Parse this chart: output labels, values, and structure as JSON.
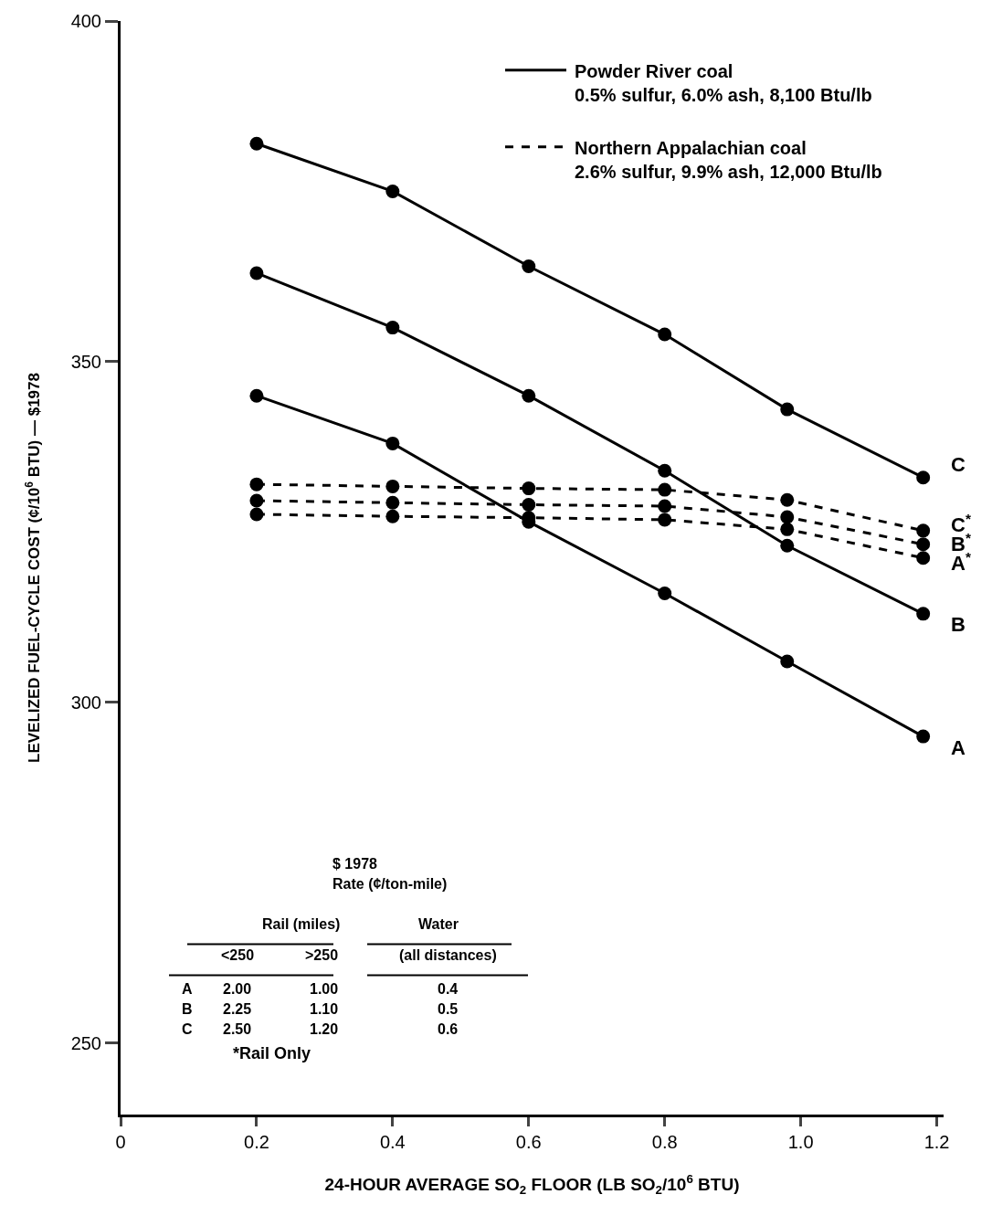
{
  "chart_data": {
    "type": "line",
    "xlabel": "24-HOUR AVERAGE SO$_{2}$ FLOOR (LB SO$_{2}$/10$^{6}$ BTU)",
    "ylabel": "LEVELIZED FUEL-CYCLE COST (¢/10$^{6}$ BTU) — $1978",
    "x": [
      0.2,
      0.4,
      0.6,
      0.8,
      0.98,
      1.18
    ],
    "xlim": [
      0,
      1.21
    ],
    "xticks": [
      {
        "value": 0,
        "label": "0"
      },
      0.2,
      0.4,
      0.6,
      0.8,
      {
        "value": 1.0,
        "label": "1.0"
      },
      1.2
    ],
    "ylim": [
      239.5,
      400
    ],
    "yticks": [
      250,
      300,
      350,
      400
    ],
    "marker": "circle",
    "legend": false,
    "series": [
      {
        "name": "C",
        "color": "#000000",
        "line_style": "solid",
        "values": [
          382,
          375,
          364,
          354,
          343,
          333
        ]
      },
      {
        "name": "B",
        "color": "#000000",
        "line_style": "solid",
        "values": [
          363,
          355,
          345,
          334,
          323,
          313
        ]
      },
      {
        "name": "A",
        "color": "#000000",
        "line_style": "solid",
        "values": [
          345,
          338,
          326.5,
          316,
          306,
          295
        ]
      },
      {
        "name": "C$^{*}$",
        "color": "#000000",
        "line_style": "dashed",
        "values": [
          332,
          331.7,
          331.4,
          331.2,
          329.7,
          325.2
        ]
      },
      {
        "name": "B$^{*}$",
        "color": "#000000",
        "line_style": "dashed",
        "values": [
          329.6,
          329.3,
          329,
          328.8,
          327.2,
          323.2
        ]
      },
      {
        "name": "A$^{*}$",
        "color": "#000000",
        "line_style": "dashed",
        "values": [
          327.6,
          327.3,
          327.1,
          326.8,
          325.4,
          321.2
        ]
      }
    ],
    "annotations": [
      "Powder River coal\n0.5% sulfur, 6.0% ash, 8,100 Btu/lb",
      "Northern Appalachian coal\n2.6% sulfur, 9.9% ash, 12,000 Btu/lb",
      "$ 1978",
      "Rate (¢/ton-mile)",
      "Rail (miles)",
      "Water",
      "<250",
      ">250",
      "(all distances)",
      "A",
      "2.00",
      "1.00",
      "0.4",
      "B",
      "2.25",
      "1.10",
      "0.5",
      "C",
      "2.50",
      "1.20",
      "0.6",
      "*Rail Only"
    ]
  }
}
